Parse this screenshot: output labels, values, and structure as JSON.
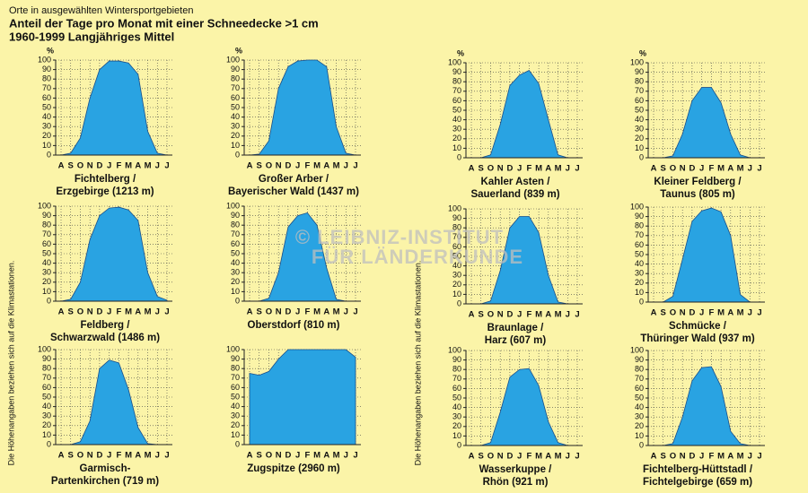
{
  "header": {
    "subtitle": "Orte in ausgewählten Wintersportgebieten",
    "title": "Anteil der Tage pro Monat mit einer Schneedecke >1 cm",
    "period": "1960-1999 Langjähriges Mittel"
  },
  "side_note": "Die Höhenangaben beziehen sich auf die Klimastationen.",
  "watermark": [
    "© LEIBNIZ-INSTITUT",
    "FÜR LÄNDERKUNDE"
  ],
  "chart_data": [
    {
      "type": "area",
      "title": [
        "Fichtelberg /",
        "Erzgebirge (1213 m)"
      ],
      "ylabel": "%",
      "color": "#29a3e2",
      "grid": true,
      "categories": [
        "A",
        "S",
        "O",
        "N",
        "D",
        "J",
        "F",
        "M",
        "A",
        "M",
        "J",
        "J"
      ],
      "values": [
        0,
        2,
        18,
        60,
        90,
        99,
        99,
        97,
        85,
        25,
        2,
        0
      ],
      "ylim": [
        0,
        100
      ],
      "yticks": [
        0,
        10,
        20,
        30,
        40,
        50,
        60,
        70,
        80,
        90,
        100
      ]
    },
    {
      "type": "area",
      "title": [
        "Großer Arber /",
        "Bayerischer Wald (1437 m)"
      ],
      "ylabel": "%",
      "color": "#29a3e2",
      "grid": true,
      "categories": [
        "A",
        "S",
        "O",
        "N",
        "D",
        "J",
        "F",
        "M",
        "A",
        "M",
        "J",
        "J"
      ],
      "values": [
        0,
        1,
        15,
        70,
        93,
        99,
        100,
        100,
        93,
        30,
        2,
        0
      ],
      "ylim": [
        0,
        100
      ],
      "yticks": [
        0,
        10,
        20,
        30,
        40,
        50,
        60,
        70,
        80,
        90,
        100
      ]
    },
    {
      "type": "area",
      "title": [
        "Kahler Asten /",
        "Sauerland (839 m)"
      ],
      "ylabel": "%",
      "color": "#29a3e2",
      "grid": true,
      "categories": [
        "A",
        "S",
        "O",
        "N",
        "D",
        "J",
        "F",
        "M",
        "A",
        "M",
        "J",
        "J"
      ],
      "values": [
        0,
        0,
        3,
        35,
        76,
        87,
        92,
        78,
        40,
        3,
        0,
        0
      ],
      "ylim": [
        0,
        100
      ],
      "yticks": [
        0,
        10,
        20,
        30,
        40,
        50,
        60,
        70,
        80,
        90,
        100
      ]
    },
    {
      "type": "area",
      "title": [
        "Kleiner Feldberg /",
        "Taunus (805 m)"
      ],
      "ylabel": "%",
      "color": "#29a3e2",
      "grid": true,
      "categories": [
        "A",
        "S",
        "O",
        "N",
        "D",
        "J",
        "F",
        "M",
        "A",
        "M",
        "J",
        "J"
      ],
      "values": [
        0,
        0,
        2,
        25,
        60,
        74,
        74,
        58,
        25,
        3,
        0,
        0
      ],
      "ylim": [
        0,
        100
      ],
      "yticks": [
        0,
        10,
        20,
        30,
        40,
        50,
        60,
        70,
        80,
        90,
        100
      ]
    },
    {
      "type": "area",
      "title": [
        "Feldberg /",
        "Schwarzwald (1486 m)"
      ],
      "color": "#29a3e2",
      "grid": true,
      "categories": [
        "A",
        "S",
        "O",
        "N",
        "D",
        "J",
        "F",
        "M",
        "A",
        "M",
        "J",
        "J"
      ],
      "values": [
        0,
        2,
        20,
        65,
        90,
        98,
        99,
        96,
        85,
        30,
        5,
        1
      ],
      "ylim": [
        0,
        100
      ],
      "yticks": [
        0,
        10,
        20,
        30,
        40,
        50,
        60,
        70,
        80,
        90,
        100
      ]
    },
    {
      "type": "area",
      "title": [
        "Oberstdorf (810 m)"
      ],
      "color": "#29a3e2",
      "grid": true,
      "categories": [
        "A",
        "S",
        "O",
        "N",
        "D",
        "J",
        "F",
        "M",
        "A",
        "M",
        "J",
        "J"
      ],
      "values": [
        0,
        0,
        3,
        30,
        78,
        90,
        93,
        80,
        35,
        2,
        0,
        0
      ],
      "ylim": [
        0,
        100
      ],
      "yticks": [
        0,
        10,
        20,
        30,
        40,
        50,
        60,
        70,
        80,
        90,
        100
      ]
    },
    {
      "type": "area",
      "title": [
        "Braunlage /",
        "Harz (607 m)"
      ],
      "color": "#29a3e2",
      "grid": true,
      "categories": [
        "A",
        "S",
        "O",
        "N",
        "D",
        "J",
        "F",
        "M",
        "A",
        "M",
        "J",
        "J"
      ],
      "values": [
        0,
        0,
        3,
        35,
        80,
        92,
        92,
        75,
        30,
        2,
        0,
        0
      ],
      "ylim": [
        0,
        100
      ],
      "yticks": [
        0,
        10,
        20,
        30,
        40,
        50,
        60,
        70,
        80,
        90,
        100
      ]
    },
    {
      "type": "area",
      "title": [
        "Schmücke /",
        "Thüringer Wald (937 m)"
      ],
      "color": "#29a3e2",
      "grid": true,
      "categories": [
        "A",
        "S",
        "O",
        "N",
        "D",
        "J",
        "F",
        "M",
        "A",
        "M",
        "J",
        "J"
      ],
      "values": [
        0,
        0,
        6,
        45,
        85,
        96,
        99,
        95,
        70,
        8,
        0,
        0
      ],
      "ylim": [
        0,
        100
      ],
      "yticks": [
        0,
        10,
        20,
        30,
        40,
        50,
        60,
        70,
        80,
        90,
        100
      ]
    },
    {
      "type": "area",
      "title": [
        "Garmisch-",
        "Partenkirchen (719 m)"
      ],
      "color": "#29a3e2",
      "grid": true,
      "categories": [
        "A",
        "S",
        "O",
        "N",
        "D",
        "J",
        "F",
        "M",
        "A",
        "M",
        "J",
        "J"
      ],
      "values": [
        0,
        0,
        3,
        25,
        80,
        89,
        86,
        58,
        18,
        1,
        0,
        0
      ],
      "ylim": [
        0,
        100
      ],
      "yticks": [
        0,
        10,
        20,
        30,
        40,
        50,
        60,
        70,
        80,
        90,
        100
      ]
    },
    {
      "type": "area",
      "title": [
        "Zugspitze (2960 m)"
      ],
      "color": "#29a3e2",
      "grid": true,
      "categories": [
        "A",
        "S",
        "O",
        "N",
        "D",
        "J",
        "F",
        "M",
        "A",
        "M",
        "J",
        "J"
      ],
      "values": [
        75,
        73,
        77,
        90,
        100,
        100,
        100,
        100,
        100,
        100,
        100,
        92
      ],
      "ylim": [
        0,
        100
      ],
      "yticks": [
        0,
        10,
        20,
        30,
        40,
        50,
        60,
        70,
        80,
        90,
        100
      ]
    },
    {
      "type": "area",
      "title": [
        "Wasserkuppe /",
        "Rhön (921 m)"
      ],
      "color": "#29a3e2",
      "grid": true,
      "categories": [
        "A",
        "S",
        "O",
        "N",
        "D",
        "J",
        "F",
        "M",
        "A",
        "M",
        "J",
        "J"
      ],
      "values": [
        0,
        0,
        3,
        35,
        72,
        80,
        81,
        63,
        25,
        3,
        0,
        0
      ],
      "ylim": [
        0,
        100
      ],
      "yticks": [
        0,
        10,
        20,
        30,
        40,
        50,
        60,
        70,
        80,
        90,
        100
      ]
    },
    {
      "type": "area",
      "title": [
        "Fichtelberg-Hüttstadl /",
        "Fichtelgebirge (659 m)"
      ],
      "color": "#29a3e2",
      "grid": true,
      "categories": [
        "A",
        "S",
        "O",
        "N",
        "D",
        "J",
        "F",
        "M",
        "A",
        "M",
        "J",
        "J"
      ],
      "values": [
        0,
        0,
        2,
        30,
        68,
        82,
        83,
        62,
        15,
        2,
        0,
        0
      ],
      "ylim": [
        0,
        100
      ],
      "yticks": [
        0,
        10,
        20,
        30,
        40,
        50,
        60,
        70,
        80,
        90,
        100
      ]
    }
  ]
}
